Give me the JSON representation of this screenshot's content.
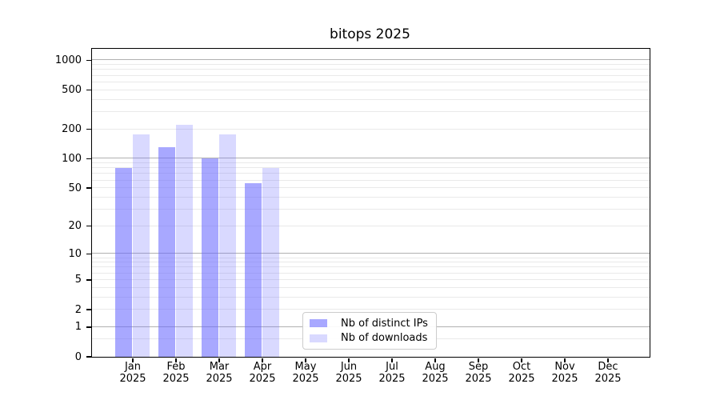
{
  "title": "bitops 2025",
  "legend": {
    "items": [
      {
        "label": "Nb of distinct IPs",
        "color": "rgba(102,102,255,0.57)"
      },
      {
        "label": "Nb of downloads",
        "color": "rgba(102,102,255,0.25)"
      }
    ]
  },
  "axes": {
    "year": "2025",
    "x_months": [
      "Jan",
      "Feb",
      "Mar",
      "Apr",
      "May",
      "Jun",
      "Jul",
      "Aug",
      "Sep",
      "Oct",
      "Nov",
      "Dec"
    ],
    "y_ticks": [
      {
        "v": 1000,
        "label": "1000"
      },
      {
        "v": 500,
        "label": "500"
      },
      {
        "v": 200,
        "label": "200"
      },
      {
        "v": 100,
        "label": "100"
      },
      {
        "v": 50,
        "label": "50"
      },
      {
        "v": 20,
        "label": "20"
      },
      {
        "v": 10,
        "label": "10"
      },
      {
        "v": 5,
        "label": "5"
      },
      {
        "v": 2,
        "label": "2"
      },
      {
        "v": 1,
        "label": "1"
      },
      {
        "v": 0,
        "label": "0"
      }
    ],
    "major_gridlines": [
      1,
      10,
      100,
      1000
    ],
    "minor_gridlines": [
      0.5,
      2,
      3,
      4,
      5,
      6,
      7,
      8,
      9,
      20,
      30,
      40,
      50,
      60,
      70,
      80,
      90,
      200,
      300,
      400,
      500,
      600,
      700,
      800,
      900
    ]
  },
  "colors": {
    "bar_dark": "rgba(102,102,255,0.57)",
    "bar_light": "rgba(102,102,255,0.25)",
    "grid_major": "#b0b0b0",
    "grid_minor": "#e9e9e9",
    "axis": "#000000",
    "legend_border": "#cccccc"
  },
  "chart_data": {
    "type": "bar",
    "title": "bitops 2025",
    "categories": [
      "Jan 2025",
      "Feb 2025",
      "Mar 2025",
      "Apr 2025",
      "May 2025",
      "Jun 2025",
      "Jul 2025",
      "Aug 2025",
      "Sep 2025",
      "Oct 2025",
      "Nov 2025",
      "Dec 2025"
    ],
    "series": [
      {
        "name": "Nb of distinct IPs",
        "values": [
          80,
          130,
          100,
          56,
          null,
          null,
          null,
          null,
          null,
          null,
          null,
          null
        ]
      },
      {
        "name": "Nb of downloads",
        "values": [
          175,
          220,
          175,
          79,
          null,
          null,
          null,
          null,
          null,
          null,
          null,
          null
        ]
      }
    ],
    "yscale": "log10(value+1)",
    "y_tick_values": [
      0,
      1,
      2,
      5,
      10,
      20,
      50,
      100,
      200,
      500,
      1000
    ],
    "ylim": [
      0,
      1300
    ],
    "grid": "horizontal, major at powers of 10 + log minors",
    "legend_position": "inside bottom-center",
    "xlabel": "",
    "ylabel": ""
  }
}
